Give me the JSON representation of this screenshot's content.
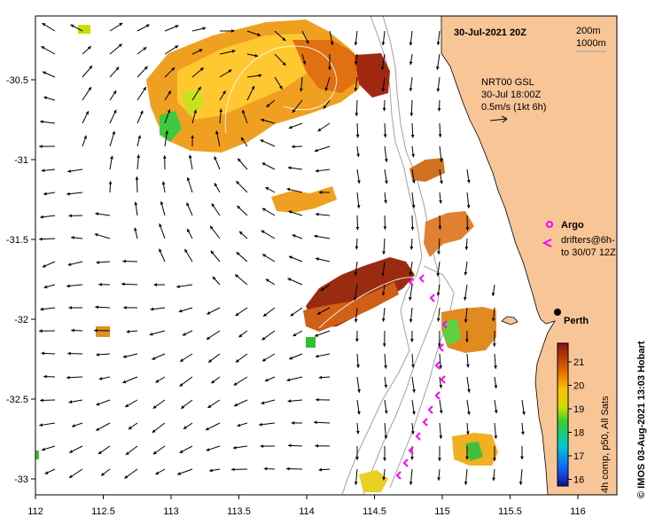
{
  "title": "30-Jul-2021 20Z",
  "depth_legend": [
    "200m",
    "1000m"
  ],
  "product": {
    "line1": "NRT00 GSL",
    "line2": "30-Jul 18:00Z",
    "line3": "0.5m/s (1kt 6h)"
  },
  "legend": {
    "argo": "Argo",
    "drifters_line1": "drifters@6h-",
    "drifters_line2": "to 30/07 12Z"
  },
  "city": "Perth",
  "colorbar": {
    "label": "4h comp, p50, All Sats",
    "ticks": [
      "21",
      "20",
      "19",
      "18",
      "17",
      "16"
    ]
  },
  "credit": "© IMOS 03-Aug-2021 13:03 Hobart",
  "x_ticks": [
    "112",
    "112.5",
    "113",
    "113.5",
    "114",
    "114.5",
    "115",
    "115.5",
    "116"
  ],
  "y_ticks": [
    "-30.5",
    "-31",
    "-31.5",
    "-32",
    "-32.5",
    "-33"
  ],
  "colors": {
    "land": "#f8c597",
    "sea": "#ffffff",
    "drifter": "#ff00ff",
    "isobath": "#a0a0a0"
  }
}
